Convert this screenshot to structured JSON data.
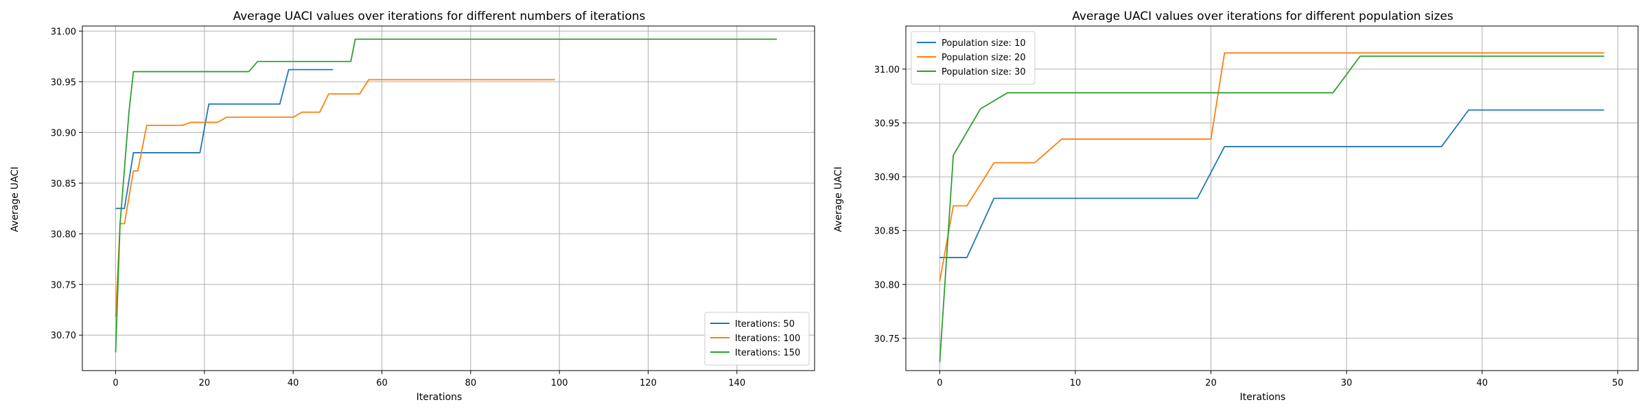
{
  "chart_data": [
    {
      "type": "line",
      "title": "Average UACI values over iterations for different numbers of iterations",
      "xlabel": "Iterations",
      "ylabel": "Average UACI",
      "xlim": [
        -7.5,
        157.5
      ],
      "ylim": [
        30.665,
        31.005
      ],
      "xticks": [
        0,
        20,
        40,
        60,
        80,
        100,
        120,
        140
      ],
      "yticks": [
        30.7,
        30.75,
        30.8,
        30.85,
        30.9,
        30.95,
        31.0
      ],
      "grid": true,
      "legend_position": "lower right",
      "series": [
        {
          "name": "Iterations: 50",
          "color": "#1f77b4",
          "points": [
            [
              0,
              30.825
            ],
            [
              2,
              30.825
            ],
            [
              4,
              30.88
            ],
            [
              19,
              30.88
            ],
            [
              21,
              30.928
            ],
            [
              37,
              30.928
            ],
            [
              39,
              30.962
            ],
            [
              49,
              30.962
            ]
          ]
        },
        {
          "name": "Iterations: 100",
          "color": "#ff7f0e",
          "points": [
            [
              0,
              30.718
            ],
            [
              1,
              30.81
            ],
            [
              2,
              30.81
            ],
            [
              4,
              30.862
            ],
            [
              5,
              30.862
            ],
            [
              7,
              30.907
            ],
            [
              15,
              30.907
            ],
            [
              17,
              30.91
            ],
            [
              23,
              30.91
            ],
            [
              25,
              30.915
            ],
            [
              40,
              30.915
            ],
            [
              42,
              30.92
            ],
            [
              46,
              30.92
            ],
            [
              48,
              30.938
            ],
            [
              55,
              30.938
            ],
            [
              57,
              30.952
            ],
            [
              99,
              30.952
            ]
          ]
        },
        {
          "name": "Iterations: 150",
          "color": "#2ca02c",
          "points": [
            [
              0,
              30.683
            ],
            [
              1,
              30.81
            ],
            [
              3,
              30.92
            ],
            [
              4,
              30.96
            ],
            [
              30,
              30.96
            ],
            [
              32,
              30.97
            ],
            [
              53,
              30.97
            ],
            [
              54,
              30.992
            ],
            [
              149,
              30.992
            ]
          ]
        }
      ]
    },
    {
      "type": "line",
      "title": "Average UACI values over iterations for different population sizes",
      "xlabel": "Iterations",
      "ylabel": "Average UACI",
      "xlim": [
        -2.5,
        51.5
      ],
      "ylim": [
        30.72,
        31.04
      ],
      "xticks": [
        0,
        10,
        20,
        30,
        40,
        50
      ],
      "yticks": [
        30.75,
        30.8,
        30.85,
        30.9,
        30.95,
        31.0
      ],
      "grid": true,
      "legend_position": "upper left",
      "series": [
        {
          "name": "Population size: 10",
          "color": "#1f77b4",
          "points": [
            [
              0,
              30.825
            ],
            [
              2,
              30.825
            ],
            [
              4,
              30.88
            ],
            [
              19,
              30.88
            ],
            [
              21,
              30.928
            ],
            [
              37,
              30.928
            ],
            [
              39,
              30.962
            ],
            [
              49,
              30.962
            ]
          ]
        },
        {
          "name": "Population size: 20",
          "color": "#ff7f0e",
          "points": [
            [
              0,
              30.803
            ],
            [
              1,
              30.873
            ],
            [
              2,
              30.873
            ],
            [
              4,
              30.913
            ],
            [
              7,
              30.913
            ],
            [
              9,
              30.935
            ],
            [
              20,
              30.935
            ],
            [
              21,
              31.015
            ],
            [
              49,
              31.015
            ]
          ]
        },
        {
          "name": "Population size: 30",
          "color": "#2ca02c",
          "points": [
            [
              0,
              30.728
            ],
            [
              1,
              30.92
            ],
            [
              3,
              30.963
            ],
            [
              5,
              30.978
            ],
            [
              29,
              30.978
            ],
            [
              31,
              31.012
            ],
            [
              49,
              31.012
            ]
          ]
        }
      ]
    }
  ]
}
